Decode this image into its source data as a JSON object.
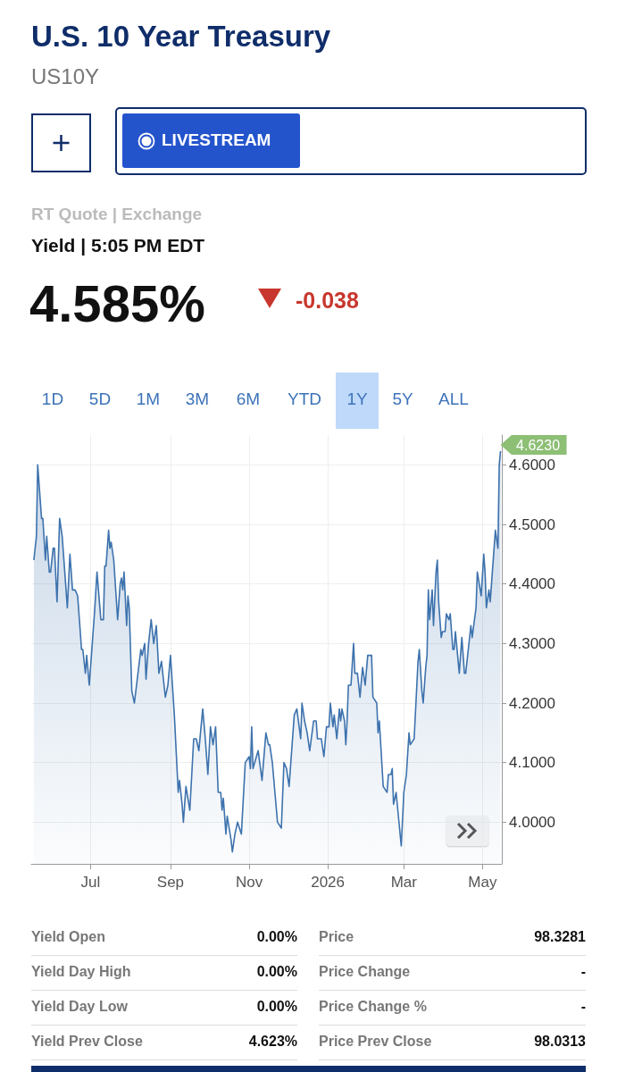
{
  "chart_data": {
    "type": "area",
    "title": "U.S. 10 Year Treasury",
    "subtitle": "US10Y",
    "annotations": [
      "LIVESTREAM",
      "RT Quote | Exchange",
      "Yield | 5:05 PM EDT",
      "4.585%",
      "-0.038",
      "1D",
      "5D",
      "1M",
      "3M",
      "6M",
      "YTD",
      "1Y",
      "5Y",
      "ALL",
      {
        "text": "4.6230",
        "x": "2026-05-15",
        "y": 4.623
      },
      "Yield Open",
      "0.00%",
      "Price",
      "98.3281",
      "Yield Day High",
      "0.00%",
      "Price Change",
      "-",
      "Yield Day Low",
      "0.00%",
      "Price Change %",
      "-",
      "Yield Prev Close",
      "4.623%",
      "Price Prev Close",
      "98.0313"
    ],
    "x": [
      "2025-05-18",
      "2025-05-20",
      "2025-05-21",
      "2025-05-24",
      "2025-05-25",
      "2025-05-27",
      "2025-05-28",
      "2025-05-30",
      "2025-05-31",
      "2025-06-02",
      "2025-06-03",
      "2025-06-05",
      "2025-06-07",
      "2025-06-09",
      "2025-06-13",
      "2025-06-15",
      "2025-06-17",
      "2025-06-19",
      "2025-06-21",
      "2025-06-24",
      "2025-06-25",
      "2025-06-27",
      "2025-06-28",
      "2025-06-30",
      "2025-07-04",
      "2025-07-06",
      "2025-07-09",
      "2025-07-11",
      "2025-07-12",
      "2025-07-13",
      "2025-07-15",
      "2025-07-16",
      "2025-07-17",
      "2025-07-19",
      "2025-07-22",
      "2025-07-24",
      "2025-07-25",
      "2025-07-26",
      "2025-07-27",
      "2025-07-29",
      "2025-07-30",
      "2025-07-31",
      "2025-08-02",
      "2025-08-04",
      "2025-08-09",
      "2025-08-10",
      "2025-08-12",
      "2025-08-13",
      "2025-08-15",
      "2025-08-17",
      "2025-08-19",
      "2025-08-21",
      "2025-08-23",
      "2025-08-25",
      "2025-08-28",
      "2025-08-30",
      "2025-09-01",
      "2025-09-04",
      "2025-09-07",
      "2025-09-08",
      "2025-09-10",
      "2025-09-11",
      "2025-09-13",
      "2025-09-16",
      "2025-09-19",
      "2025-09-21",
      "2025-09-23",
      "2025-09-26",
      "2025-09-28",
      "2025-09-30",
      "2025-10-02",
      "2025-10-04",
      "2025-10-06",
      "2025-10-08",
      "2025-10-10",
      "2025-10-11",
      "2025-10-12",
      "2025-10-14",
      "2025-10-15",
      "2025-10-18",
      "2025-10-19",
      "2025-10-21",
      "2025-10-23",
      "2025-10-26",
      "2025-10-29",
      "2025-11-01",
      "2025-11-02",
      "2025-11-03",
      "2025-11-04",
      "2025-11-08",
      "2025-11-11",
      "2025-11-14",
      "2025-11-16",
      "2025-11-17",
      "2025-11-19",
      "2025-11-21",
      "2025-11-23",
      "2025-11-26",
      "2025-11-28",
      "2025-11-30",
      "2025-12-02",
      "2025-12-04",
      "2025-12-06",
      "2025-12-08",
      "2025-12-11",
      "2025-12-12",
      "2025-12-14",
      "2025-12-16",
      "2025-12-18",
      "2025-12-21",
      "2025-12-23",
      "2025-12-24",
      "2025-12-27",
      "2025-12-29",
      "2025-12-31",
      "2026-01-02",
      "2026-01-03",
      "2026-01-05",
      "2026-01-06",
      "2026-01-08",
      "2026-01-10",
      "2026-01-11",
      "2026-01-12",
      "2026-01-14",
      "2026-01-15",
      "2026-01-16",
      "2026-01-17",
      "2026-01-19",
      "2026-01-21",
      "2026-01-22",
      "2026-01-24",
      "2026-01-26",
      "2026-01-28",
      "2026-01-30",
      "2026-02-01",
      "2026-02-04",
      "2026-02-05",
      "2026-02-08",
      "2026-02-09",
      "2026-02-10",
      "2026-02-13",
      "2026-02-16",
      "2026-02-17",
      "2026-02-19",
      "2026-02-20",
      "2026-02-21",
      "2026-02-23",
      "2026-02-27",
      "2026-03-01",
      "2026-03-03",
      "2026-03-05",
      "2026-03-06",
      "2026-03-09",
      "2026-03-12",
      "2026-03-13",
      "2026-03-15",
      "2026-03-16",
      "2026-03-18",
      "2026-03-19",
      "2026-03-20",
      "2026-03-21",
      "2026-03-23",
      "2026-03-24",
      "2026-03-26",
      "2026-03-27",
      "2026-03-28",
      "2026-03-30",
      "2026-03-31",
      "2026-04-02",
      "2026-04-03",
      "2026-04-05",
      "2026-04-06",
      "2026-04-08",
      "2026-04-09",
      "2026-04-10",
      "2026-04-13",
      "2026-04-15",
      "2026-04-17",
      "2026-04-18",
      "2026-04-20",
      "2026-04-22",
      "2026-04-23",
      "2026-04-26",
      "2026-04-27",
      "2026-04-30",
      "2026-05-02",
      "2026-05-03",
      "2026-05-04",
      "2026-05-06",
      "2026-05-07",
      "2026-05-10",
      "2026-05-11",
      "2026-05-13",
      "2026-05-14",
      "2026-05-15"
    ],
    "series": [
      {
        "color": "#3d72ad",
        "values": [
          4.44,
          4.48,
          4.6,
          4.51,
          4.51,
          4.44,
          4.48,
          4.42,
          4.42,
          4.46,
          4.46,
          4.37,
          4.51,
          4.48,
          4.36,
          4.45,
          4.39,
          4.39,
          4.38,
          4.29,
          4.29,
          4.25,
          4.28,
          4.23,
          4.35,
          4.42,
          4.34,
          4.34,
          4.43,
          4.43,
          4.49,
          4.46,
          4.47,
          4.44,
          4.34,
          4.4,
          4.41,
          4.39,
          4.42,
          4.33,
          4.38,
          4.36,
          4.22,
          4.2,
          4.29,
          4.28,
          4.3,
          4.24,
          4.3,
          4.34,
          4.3,
          4.33,
          4.25,
          4.27,
          4.21,
          4.23,
          4.28,
          4.18,
          4.05,
          4.07,
          4.03,
          4.0,
          4.06,
          4.02,
          4.14,
          4.14,
          4.12,
          4.19,
          4.14,
          4.08,
          4.16,
          4.13,
          4.16,
          4.05,
          4.05,
          4.02,
          4.04,
          3.98,
          4.01,
          3.97,
          3.95,
          3.98,
          4.0,
          3.98,
          4.1,
          4.11,
          4.09,
          4.16,
          4.09,
          4.12,
          4.07,
          4.15,
          4.13,
          4.13,
          4.1,
          4.05,
          4.0,
          3.99,
          4.1,
          4.09,
          4.06,
          4.12,
          4.18,
          4.19,
          4.14,
          4.2,
          4.17,
          4.15,
          4.12,
          4.17,
          4.17,
          4.14,
          4.14,
          4.11,
          4.16,
          4.16,
          4.2,
          4.16,
          4.18,
          4.14,
          4.19,
          4.17,
          4.19,
          4.17,
          4.13,
          4.17,
          4.23,
          4.23,
          4.3,
          4.25,
          4.25,
          4.21,
          4.26,
          4.23,
          4.28,
          4.28,
          4.21,
          4.2,
          4.15,
          4.17,
          4.06,
          4.05,
          4.08,
          4.08,
          4.09,
          4.03,
          4.05,
          3.96,
          4.05,
          4.08,
          4.15,
          4.13,
          4.14,
          4.27,
          4.29,
          4.22,
          4.2,
          4.26,
          4.28,
          4.39,
          4.34,
          4.39,
          4.33,
          4.42,
          4.44,
          4.37,
          4.31,
          4.32,
          4.32,
          4.35,
          4.34,
          4.35,
          4.29,
          4.29,
          4.32,
          4.25,
          4.31,
          4.25,
          4.25,
          4.29,
          4.33,
          4.31,
          4.36,
          4.42,
          4.38,
          4.45,
          4.42,
          4.36,
          4.39,
          4.37,
          4.46,
          4.49,
          4.46,
          4.6,
          4.623
        ]
      }
    ],
    "xlim": [
      "2025-05-16",
      "2026-05-16"
    ],
    "xticks": [
      {
        "value": "2025-07-01",
        "label": "Jul"
      },
      {
        "value": "2025-09-01",
        "label": "Sep"
      },
      {
        "value": "2025-11-01",
        "label": "Nov"
      },
      {
        "value": "2026-01-01",
        "label": "2026"
      },
      {
        "value": "2026-03-01",
        "label": "Mar"
      },
      {
        "value": "2026-05-01",
        "label": "May"
      }
    ],
    "ylim": [
      3.93,
      4.65
    ],
    "yticks": [
      {
        "value": 4.0,
        "label": "4.0000"
      },
      {
        "value": 4.1,
        "label": "4.1000"
      },
      {
        "value": 4.2,
        "label": "4.2000"
      },
      {
        "value": 4.3,
        "label": "4.3000"
      },
      {
        "value": 4.4,
        "label": "4.4000"
      },
      {
        "value": 4.5,
        "label": "4.5000"
      },
      {
        "value": 4.6,
        "label": "4.6000"
      }
    ],
    "grid": true,
    "marker": "none",
    "line_style": "solid"
  }
}
